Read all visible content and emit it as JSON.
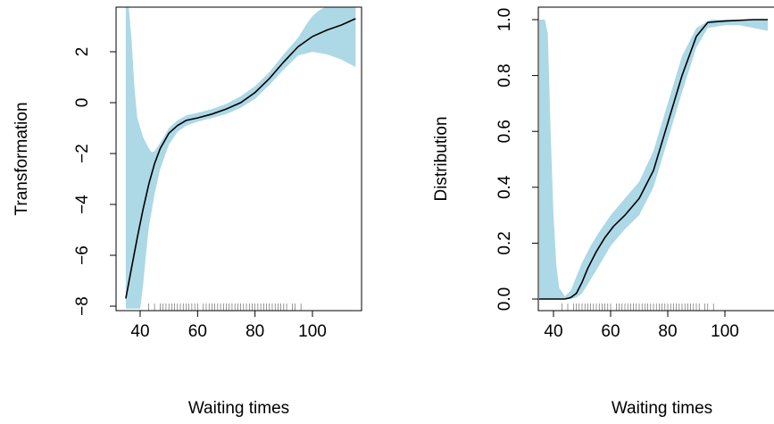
{
  "chart_data": [
    {
      "type": "line",
      "title": "",
      "xlabel": "Waiting times",
      "ylabel": "Transformation",
      "xlim": [
        33,
        117
      ],
      "ylim": [
        -8.1,
        3.8
      ],
      "xticks": [
        40,
        60,
        80,
        100
      ],
      "yticks": [
        -8,
        -6,
        -4,
        -2,
        0,
        2
      ],
      "tick_labels_x": [
        "40",
        "60",
        "80",
        "100"
      ],
      "tick_labels_y": [
        "−8",
        "−6",
        "−4",
        "−2",
        "0",
        "2"
      ],
      "band_color": "#add8e6",
      "line_color": "#000000",
      "grid": false,
      "series": [
        {
          "values": [
            [
              35,
              -7.7
            ],
            [
              37,
              -6.5
            ],
            [
              39,
              -5.3
            ],
            [
              41,
              -4.2
            ],
            [
              43,
              -3.2
            ],
            [
              45,
              -2.4
            ],
            [
              47,
              -1.8
            ],
            [
              50,
              -1.2
            ],
            [
              53,
              -0.9
            ],
            [
              56,
              -0.7
            ],
            [
              60,
              -0.6
            ],
            [
              65,
              -0.45
            ],
            [
              70,
              -0.25
            ],
            [
              75,
              0.0
            ],
            [
              80,
              0.4
            ],
            [
              85,
              0.95
            ],
            [
              90,
              1.6
            ],
            [
              95,
              2.2
            ],
            [
              100,
              2.6
            ],
            [
              105,
              2.85
            ],
            [
              110,
              3.05
            ],
            [
              115,
              3.3
            ]
          ]
        }
      ],
      "band": {
        "upper": [
          [
            35,
            3.8
          ],
          [
            36,
            3.8
          ],
          [
            37,
            2.5
          ],
          [
            38,
            0.6
          ],
          [
            39,
            -0.6
          ],
          [
            41,
            -1.35
          ],
          [
            43,
            -1.8
          ],
          [
            44,
            -1.95
          ],
          [
            45,
            -1.9
          ],
          [
            46,
            -1.75
          ],
          [
            48,
            -1.4
          ],
          [
            50,
            -1.0
          ],
          [
            53,
            -0.7
          ],
          [
            56,
            -0.5
          ],
          [
            60,
            -0.4
          ],
          [
            65,
            -0.25
          ],
          [
            70,
            -0.05
          ],
          [
            75,
            0.25
          ],
          [
            80,
            0.65
          ],
          [
            85,
            1.2
          ],
          [
            90,
            1.9
          ],
          [
            95,
            2.55
          ],
          [
            98,
            3.1
          ],
          [
            100,
            3.4
          ],
          [
            102,
            3.6
          ],
          [
            105,
            3.8
          ],
          [
            115,
            3.8
          ]
        ],
        "lower": [
          [
            35,
            -8.1
          ],
          [
            40,
            -8.1
          ],
          [
            41,
            -7.2
          ],
          [
            42,
            -6.0
          ],
          [
            43,
            -4.9
          ],
          [
            45,
            -3.6
          ],
          [
            47,
            -2.6
          ],
          [
            50,
            -1.65
          ],
          [
            53,
            -1.15
          ],
          [
            56,
            -0.9
          ],
          [
            60,
            -0.75
          ],
          [
            65,
            -0.6
          ],
          [
            70,
            -0.45
          ],
          [
            75,
            -0.2
          ],
          [
            80,
            0.15
          ],
          [
            85,
            0.7
          ],
          [
            90,
            1.3
          ],
          [
            95,
            1.85
          ],
          [
            100,
            2.0
          ],
          [
            105,
            1.9
          ],
          [
            110,
            1.7
          ],
          [
            115,
            1.4
          ]
        ]
      },
      "rug": [
        43,
        45,
        47,
        48,
        49,
        50,
        51,
        52,
        53,
        54,
        55,
        56,
        57,
        58,
        59,
        60,
        62,
        63,
        64,
        65,
        66,
        67,
        68,
        69,
        70,
        71,
        72,
        73,
        74,
        75,
        76,
        77,
        78,
        79,
        80,
        81,
        82,
        83,
        84,
        85,
        86,
        87,
        88,
        89,
        90,
        91,
        93,
        94,
        96
      ]
    },
    {
      "type": "line",
      "title": "",
      "xlabel": "Waiting times",
      "ylabel": "Distribution",
      "xlim": [
        33,
        117
      ],
      "ylim": [
        0.0,
        1.0
      ],
      "xticks": [
        40,
        60,
        80,
        100
      ],
      "yticks": [
        0.0,
        0.2,
        0.4,
        0.6,
        0.8,
        1.0
      ],
      "tick_labels_x": [
        "40",
        "60",
        "80",
        "100"
      ],
      "tick_labels_y": [
        "0.0",
        "0.2",
        "0.4",
        "0.6",
        "0.8",
        "1.0"
      ],
      "band_color": "#add8e6",
      "line_color": "#000000",
      "grid": false,
      "series": [
        {
          "values": [
            [
              35,
              0.0
            ],
            [
              40,
              0.0
            ],
            [
              44,
              0.0
            ],
            [
              46,
              0.005
            ],
            [
              48,
              0.02
            ],
            [
              50,
              0.06
            ],
            [
              52,
              0.11
            ],
            [
              55,
              0.17
            ],
            [
              58,
              0.22
            ],
            [
              61,
              0.26
            ],
            [
              65,
              0.3
            ],
            [
              70,
              0.36
            ],
            [
              75,
              0.46
            ],
            [
              80,
              0.63
            ],
            [
              85,
              0.8
            ],
            [
              90,
              0.94
            ],
            [
              94,
              0.99
            ],
            [
              100,
              0.995
            ],
            [
              110,
              1.0
            ],
            [
              115,
              1.0
            ]
          ]
        }
      ],
      "band": {
        "upper": [
          [
            35,
            1.0
          ],
          [
            37,
            1.0
          ],
          [
            38,
            0.95
          ],
          [
            39,
            0.6
          ],
          [
            40,
            0.3
          ],
          [
            41,
            0.12
          ],
          [
            42,
            0.04
          ],
          [
            44,
            0.01
          ],
          [
            46,
            0.03
          ],
          [
            48,
            0.08
          ],
          [
            50,
            0.13
          ],
          [
            53,
            0.19
          ],
          [
            56,
            0.24
          ],
          [
            60,
            0.3
          ],
          [
            65,
            0.36
          ],
          [
            70,
            0.42
          ],
          [
            75,
            0.53
          ],
          [
            80,
            0.7
          ],
          [
            85,
            0.87
          ],
          [
            90,
            0.97
          ],
          [
            95,
            1.0
          ],
          [
            115,
            1.0
          ]
        ],
        "lower": [
          [
            35,
            0.0
          ],
          [
            46,
            0.0
          ],
          [
            48,
            0.005
          ],
          [
            50,
            0.02
          ],
          [
            53,
            0.07
          ],
          [
            56,
            0.12
          ],
          [
            60,
            0.19
          ],
          [
            65,
            0.25
          ],
          [
            70,
            0.3
          ],
          [
            75,
            0.4
          ],
          [
            80,
            0.57
          ],
          [
            85,
            0.74
          ],
          [
            90,
            0.9
          ],
          [
            94,
            0.97
          ],
          [
            100,
            0.98
          ],
          [
            105,
            0.98
          ],
          [
            110,
            0.97
          ],
          [
            115,
            0.96
          ]
        ]
      },
      "rug": [
        43,
        45,
        47,
        48,
        49,
        50,
        51,
        52,
        53,
        54,
        55,
        56,
        57,
        58,
        59,
        60,
        62,
        63,
        64,
        65,
        66,
        67,
        68,
        69,
        70,
        71,
        72,
        73,
        74,
        75,
        76,
        77,
        78,
        79,
        80,
        81,
        82,
        83,
        84,
        85,
        86,
        87,
        88,
        89,
        90,
        91,
        93,
        94,
        96
      ]
    }
  ]
}
